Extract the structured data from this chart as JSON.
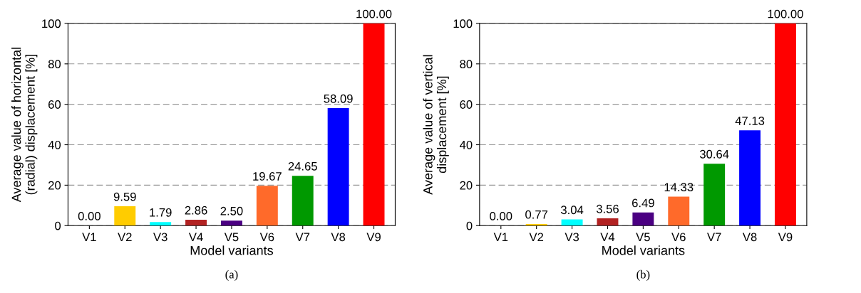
{
  "chart_data": [
    {
      "type": "bar",
      "categories": [
        "V1",
        "V2",
        "V3",
        "V4",
        "V5",
        "V6",
        "V7",
        "V8",
        "V9"
      ],
      "values": [
        0.0,
        9.59,
        1.79,
        2.86,
        2.5,
        19.67,
        24.65,
        58.09,
        100.0
      ],
      "colors": [
        "#808080",
        "#ffcc00",
        "#00ffff",
        "#b22222",
        "#4b0082",
        "#ff6a2a",
        "#009900",
        "#0000ff",
        "#ff0000"
      ],
      "value_labels": [
        "0.00",
        "9.59",
        "1.79",
        "2.86",
        "2.50",
        "19.67",
        "24.65",
        "58.09",
        "100.00"
      ],
      "xlabel": "Model variants",
      "ylabel": "Average value of horizontal\n(radial) displacement [%]",
      "ylim": [
        0,
        100
      ],
      "yticks": [
        0,
        20,
        40,
        60,
        80,
        100
      ],
      "grid": "y",
      "annotations": [
        "(a)"
      ]
    },
    {
      "type": "bar",
      "categories": [
        "V1",
        "V2",
        "V3",
        "V4",
        "V5",
        "V6",
        "V7",
        "V8",
        "V9"
      ],
      "values": [
        0.0,
        0.77,
        3.04,
        3.56,
        6.49,
        14.33,
        30.64,
        47.13,
        100.0
      ],
      "colors": [
        "#808080",
        "#ffcc00",
        "#00ffff",
        "#b22222",
        "#4b0082",
        "#ff6a2a",
        "#009900",
        "#0000ff",
        "#ff0000"
      ],
      "value_labels": [
        "0.00",
        "0.77",
        "3.04",
        "3.56",
        "6.49",
        "14.33",
        "30.64",
        "47.13",
        "100.00"
      ],
      "xlabel": "Model variants",
      "ylabel": "Average value of vertical\ndisplacement [%]",
      "ylim": [
        0,
        100
      ],
      "yticks": [
        0,
        20,
        40,
        60,
        80,
        100
      ],
      "grid": "y",
      "annotations": [
        "(b)"
      ]
    }
  ]
}
